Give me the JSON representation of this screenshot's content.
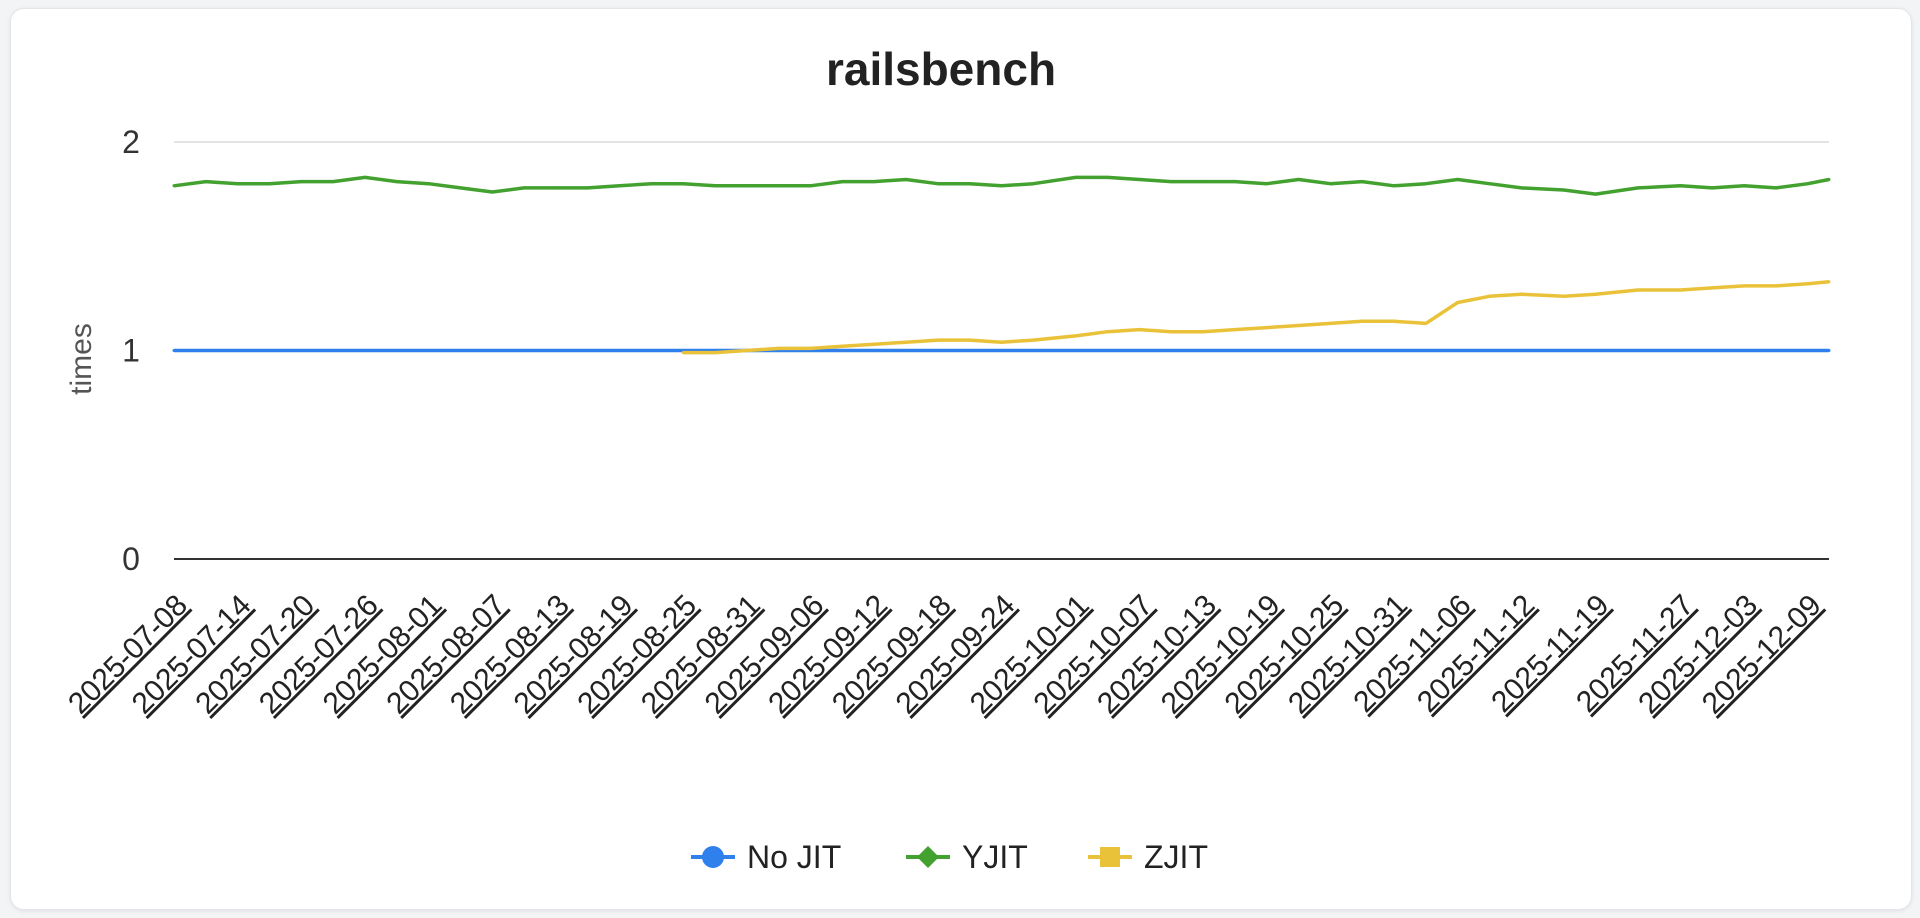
{
  "chart_data": {
    "type": "line",
    "title": "railsbench",
    "xlabel": "",
    "ylabel": "times",
    "ylim": [
      0,
      2
    ],
    "yticks": [
      "0",
      "1",
      "2"
    ],
    "grid": true,
    "legend_position": "bottom-center",
    "x_tick_labels": [
      "2025-07-08",
      "2025-07-14",
      "2025-07-20",
      "2025-07-26",
      "2025-08-01",
      "2025-08-07",
      "2025-08-13",
      "2025-08-19",
      "2025-08-25",
      "2025-08-31",
      "2025-09-06",
      "2025-09-12",
      "2025-09-18",
      "2025-09-24",
      "2025-10-01",
      "2025-10-07",
      "2025-10-13",
      "2025-10-19",
      "2025-10-25",
      "2025-10-31",
      "2025-11-06",
      "2025-11-12",
      "2025-11-19",
      "2025-11-27",
      "2025-12-03",
      "2025-12-09"
    ],
    "x": [
      "2025-07-08",
      "2025-07-11",
      "2025-07-14",
      "2025-07-17",
      "2025-07-20",
      "2025-07-23",
      "2025-07-26",
      "2025-07-29",
      "2025-08-01",
      "2025-08-04",
      "2025-08-07",
      "2025-08-10",
      "2025-08-13",
      "2025-08-16",
      "2025-08-19",
      "2025-08-22",
      "2025-08-25",
      "2025-08-28",
      "2025-08-31",
      "2025-09-03",
      "2025-09-06",
      "2025-09-09",
      "2025-09-12",
      "2025-09-15",
      "2025-09-18",
      "2025-09-21",
      "2025-09-24",
      "2025-09-27",
      "2025-10-01",
      "2025-10-04",
      "2025-10-07",
      "2025-10-10",
      "2025-10-13",
      "2025-10-16",
      "2025-10-19",
      "2025-10-22",
      "2025-10-25",
      "2025-10-28",
      "2025-10-31",
      "2025-11-03",
      "2025-11-06",
      "2025-11-09",
      "2025-11-12",
      "2025-11-16",
      "2025-11-19",
      "2025-11-23",
      "2025-11-27",
      "2025-11-30",
      "2025-12-03",
      "2025-12-06",
      "2025-12-09",
      "2025-12-11"
    ],
    "series": [
      {
        "name": "No JIT",
        "color": "#2f80ed",
        "marker": "circle",
        "values": [
          1,
          1,
          1,
          1,
          1,
          1,
          1,
          1,
          1,
          1,
          1,
          1,
          1,
          1,
          1,
          1,
          1,
          1,
          1,
          1,
          1,
          1,
          1,
          1,
          1,
          1,
          1,
          1,
          1,
          1,
          1,
          1,
          1,
          1,
          1,
          1,
          1,
          1,
          1,
          1,
          1,
          1,
          1,
          1,
          1,
          1,
          1,
          1,
          1,
          1,
          1,
          1
        ]
      },
      {
        "name": "YJIT",
        "color": "#43a130",
        "marker": "diamond",
        "values": [
          1.79,
          1.81,
          1.8,
          1.8,
          1.81,
          1.81,
          1.83,
          1.81,
          1.8,
          1.78,
          1.76,
          1.78,
          1.78,
          1.78,
          1.79,
          1.8,
          1.8,
          1.79,
          1.79,
          1.79,
          1.79,
          1.81,
          1.81,
          1.82,
          1.8,
          1.8,
          1.79,
          1.8,
          1.83,
          1.83,
          1.82,
          1.81,
          1.81,
          1.81,
          1.8,
          1.82,
          1.8,
          1.81,
          1.79,
          1.8,
          1.82,
          1.8,
          1.78,
          1.77,
          1.75,
          1.78,
          1.79,
          1.78,
          1.79,
          1.78,
          1.8,
          1.82
        ]
      },
      {
        "name": "ZJIT",
        "color": "#e9c23a",
        "marker": "square",
        "values": [
          null,
          null,
          null,
          null,
          null,
          null,
          null,
          null,
          null,
          null,
          null,
          null,
          null,
          null,
          null,
          null,
          0.99,
          0.99,
          1.0,
          1.01,
          1.01,
          1.02,
          1.03,
          1.04,
          1.05,
          1.05,
          1.04,
          1.05,
          1.07,
          1.09,
          1.1,
          1.09,
          1.09,
          1.1,
          1.11,
          1.12,
          1.13,
          1.14,
          1.14,
          1.13,
          1.23,
          1.26,
          1.27,
          1.26,
          1.27,
          1.29,
          1.29,
          1.3,
          1.31,
          1.31,
          1.32,
          1.33
        ]
      }
    ]
  }
}
